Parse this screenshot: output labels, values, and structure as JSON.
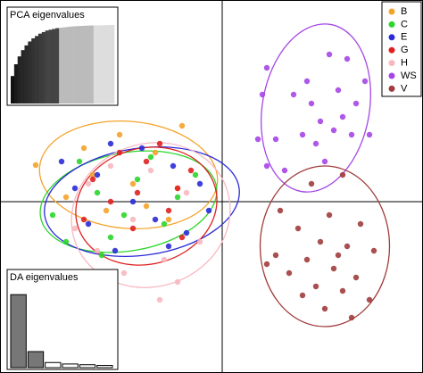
{
  "chart_data": [
    {
      "type": "scatter",
      "xlim": [
        -4.98,
        4.5
      ],
      "ylim": [
        -3.84,
        4.52
      ],
      "legend": "top-right",
      "series": [
        {
          "name": "B",
          "color": "#f4a32a",
          "x": [
            -4.18,
            -0.9,
            -3.1,
            -2.0,
            -1.5,
            -2.6,
            -1.0,
            -3.5,
            -2.3,
            -1.2,
            -2.9,
            -1.7
          ],
          "values": [
            0.82,
            1.7,
            1.2,
            0.4,
            1.1,
            -0.2,
            0.3,
            0.1,
            1.5,
            -0.4,
            0.6,
            -0.1
          ],
          "ellipse": {
            "cx": -2.1,
            "cy": 0.6,
            "rx": 2.0,
            "ry": 1.2,
            "angle": 5
          }
        },
        {
          "name": "C",
          "color": "#2bd62b",
          "x": [
            -3.8,
            -3.2,
            -2.5,
            -1.9,
            -1.3,
            -0.6,
            -2.8,
            -1.6,
            -3.5,
            -2.2,
            -1.0,
            -2.7
          ],
          "values": [
            -0.3,
            0.9,
            -0.8,
            0.5,
            -0.5,
            0.6,
            0.2,
            1.0,
            -0.9,
            -0.3,
            0.1,
            -1.2
          ],
          "ellipse": {
            "cx": -2.1,
            "cy": 0.0,
            "rx": 2.0,
            "ry": 1.1,
            "angle": -10
          }
        },
        {
          "name": "E",
          "color": "#2a2ad8",
          "x": [
            -3.6,
            -0.3,
            -2.5,
            -1.1,
            -3.0,
            -2.0,
            -0.8,
            -1.5,
            -2.4,
            -0.5,
            -3.3,
            -1.8,
            -1.2,
            -2.8
          ],
          "values": [
            0.9,
            -0.2,
            1.3,
            0.8,
            -0.5,
            0.0,
            -0.7,
            -0.4,
            -1.1,
            0.4,
            0.3,
            1.2,
            -1.0,
            0.6
          ],
          "ellipse": {
            "cx": -1.8,
            "cy": 0.0,
            "rx": 2.2,
            "ry": 1.2,
            "angle": -8
          }
        },
        {
          "name": "G",
          "color": "#e02020",
          "x": [
            -2.9,
            -1.4,
            -2.0,
            -1.0,
            -2.5,
            -1.7,
            -0.9,
            -2.3,
            -1.2,
            -3.1,
            -1.9,
            -0.7
          ],
          "values": [
            0.5,
            1.3,
            -0.6,
            0.3,
            0.0,
            0.9,
            -0.8,
            1.1,
            -0.2,
            -0.4,
            0.2,
            0.7
          ],
          "ellipse": {
            "cx": -1.7,
            "cy": -0.1,
            "rx": 1.6,
            "ry": 1.3,
            "angle": -15
          }
        },
        {
          "name": "H",
          "color": "#f7b8c0",
          "x": [
            -3.3,
            -2.2,
            -1.3,
            -0.5,
            -2.8,
            -1.6,
            -1.0,
            -2.0,
            -3.0,
            -0.8,
            -1.4,
            -2.5
          ],
          "values": [
            -0.6,
            -1.6,
            -1.3,
            -0.9,
            -1.1,
            0.7,
            -1.8,
            -0.4,
            0.4,
            0.2,
            -2.2,
            0.8
          ],
          "ellipse": {
            "cx": -1.6,
            "cy": -0.3,
            "rx": 1.8,
            "ry": 1.6,
            "angle": -20
          }
        },
        {
          "name": "WS",
          "color": "#a646e6",
          "x": [
            1.0,
            2.4,
            2.8,
            1.9,
            2.6,
            3.0,
            1.6,
            2.2,
            2.5,
            2.9,
            3.3,
            1.8,
            2.1,
            1.2,
            0.8,
            1.0,
            2.3,
            1.4,
            3.2,
            2.7,
            0.9,
            2.0
          ],
          "values": [
            3.0,
            3.3,
            3.2,
            2.7,
            2.5,
            2.2,
            2.4,
            1.8,
            1.6,
            1.5,
            1.5,
            1.5,
            1.3,
            1.4,
            1.4,
            0.8,
            0.9,
            0.7,
            2.7,
            1.9,
            2.4,
            2.2
          ],
          "ellipse": {
            "cx": 2.1,
            "cy": 2.1,
            "rx": 1.2,
            "ry": 1.9,
            "angle": 10
          }
        },
        {
          "name": "V",
          "color": "#a03c3c",
          "x": [
            2.0,
            2.7,
            1.3,
            2.4,
            3.1,
            1.7,
            2.2,
            2.8,
            3.4,
            1.2,
            1.9,
            2.5,
            3.0,
            1.5,
            2.1,
            2.7,
            3.3,
            2.3,
            2.9,
            1.0,
            1.8,
            2.6
          ],
          "values": [
            0.4,
            0.6,
            -0.2,
            -0.3,
            -0.5,
            -0.6,
            -0.9,
            -1.0,
            -1.1,
            -1.2,
            -1.3,
            -1.5,
            -1.7,
            -1.6,
            -1.9,
            -2.0,
            -2.2,
            -2.4,
            -2.6,
            -1.4,
            -2.1,
            -1.2
          ],
          "ellipse": {
            "cx": 2.3,
            "cy": -1.0,
            "rx": 1.45,
            "ry": 1.8,
            "angle": 0
          }
        }
      ]
    },
    {
      "type": "bar",
      "title": "PCA eigenvalues",
      "ylim": [
        0,
        1
      ],
      "values": [
        0.35,
        0.5,
        0.6,
        0.68,
        0.74,
        0.79,
        0.83,
        0.86,
        0.89,
        0.91,
        0.93,
        0.94,
        0.95,
        0.96,
        0.965,
        0.97,
        0.975,
        0.98,
        0.983,
        0.986,
        0.988,
        0.99,
        0.992,
        0.994,
        0.995,
        0.996,
        0.997,
        0.998,
        0.999,
        1.0
      ],
      "colors": [
        "#111",
        "#1a1a1a",
        "#222",
        "#262626",
        "#2a2a2a",
        "#2e2e2e",
        "#333",
        "#363636",
        "#3a3a3a",
        "#3d3d3d",
        "#444",
        "#444",
        "#444",
        "#444",
        "#bbb",
        "#bbb",
        "#bbb",
        "#bbb",
        "#bbb",
        "#bbb",
        "#bbb",
        "#bbb",
        "#bbb",
        "#bbb",
        "#ddd",
        "#ddd",
        "#ddd",
        "#ddd",
        "#ddd",
        "#ddd"
      ]
    },
    {
      "type": "bar",
      "title": "DA eigenvalues",
      "ylim": [
        0,
        110
      ],
      "values": [
        100,
        22,
        7,
        5,
        4,
        3
      ],
      "colors": [
        "#777",
        "#777",
        "#fff",
        "#fff",
        "#fff",
        "#fff"
      ]
    }
  ]
}
